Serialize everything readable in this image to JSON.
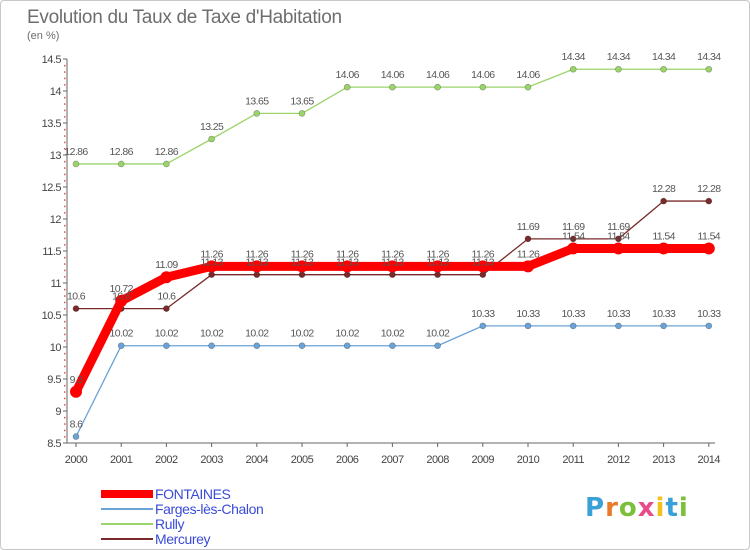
{
  "chart_data": {
    "type": "line",
    "title": "Evolution du Taux de Taxe d'Habitation",
    "unit_label": "(en %)",
    "x": [
      "2000",
      "2001",
      "2002",
      "2003",
      "2004",
      "2005",
      "2006",
      "2007",
      "2008",
      "2009",
      "2010",
      "2011",
      "2012",
      "2013",
      "2014"
    ],
    "ylim": [
      8.5,
      14.5
    ],
    "y_ticks": [
      "8.5",
      "9",
      "9.5",
      "10",
      "10.5",
      "11",
      "11.5",
      "12",
      "12.5",
      "13",
      "13.5",
      "14",
      "14.5"
    ],
    "grid": false,
    "legend_position": "bottom-left",
    "series": [
      {
        "name": "FONTAINES",
        "color": "#ff0000",
        "values": [
          9.3,
          10.72,
          11.09,
          11.26,
          11.26,
          11.26,
          11.26,
          11.26,
          11.26,
          11.26,
          11.26,
          11.54,
          11.54,
          11.54,
          11.54
        ],
        "labels": [
          "9.3",
          "10.72",
          "11.09",
          "11.26",
          "11.26",
          "11.26",
          "11.26",
          "11.26",
          "11.26",
          "11.26",
          "11.26",
          "11.54",
          "11.54",
          "11.54",
          "11.54"
        ]
      },
      {
        "name": "Farges-lès-Chalon",
        "color": "#6ba3d6",
        "values": [
          8.6,
          10.02,
          10.02,
          10.02,
          10.02,
          10.02,
          10.02,
          10.02,
          10.02,
          10.33,
          10.33,
          10.33,
          10.33,
          10.33,
          10.33
        ],
        "labels": [
          "8.6",
          "10.02",
          "10.02",
          "10.02",
          "10.02",
          "10.02",
          "10.02",
          "10.02",
          "10.02",
          "10.33",
          "10.33",
          "10.33",
          "10.33",
          "10.33",
          "10.33"
        ]
      },
      {
        "name": "Rully",
        "color": "#9ad46a",
        "values": [
          12.86,
          12.86,
          12.86,
          13.25,
          13.65,
          13.65,
          14.06,
          14.06,
          14.06,
          14.06,
          14.06,
          14.34,
          14.34,
          14.34,
          14.34
        ],
        "labels": [
          "12.86",
          "12.86",
          "12.86",
          "13.25",
          "13.65",
          "13.65",
          "14.06",
          "14.06",
          "14.06",
          "14.06",
          "14.06",
          "14.34",
          "14.34",
          "14.34",
          "14.34"
        ]
      },
      {
        "name": "Mercurey",
        "color": "#7a2a2a",
        "values": [
          10.6,
          10.6,
          10.6,
          11.13,
          11.13,
          11.13,
          11.13,
          11.13,
          11.13,
          11.13,
          11.69,
          11.69,
          11.69,
          12.28,
          12.28
        ],
        "labels": [
          "10.6",
          "10.6",
          "10.6",
          "11.13",
          "11.13",
          "11.13",
          "11.13",
          "11.13",
          "11.13",
          "11.13",
          "11.69",
          "11.69",
          "11.69",
          "12.28",
          "12.28"
        ]
      }
    ]
  },
  "logo": {
    "letters": [
      {
        "ch": "P",
        "color": "#3aa0d8"
      },
      {
        "ch": "r",
        "color": "#e87a2a"
      },
      {
        "ch": "o",
        "color": "#7bbf3a"
      },
      {
        "ch": "x",
        "color": "#e84a8a"
      },
      {
        "ch": "i",
        "color": "#f2c21a"
      },
      {
        "ch": "t",
        "color": "#3aa0d8"
      },
      {
        "ch": "i",
        "color": "#7bbf3a"
      }
    ]
  }
}
